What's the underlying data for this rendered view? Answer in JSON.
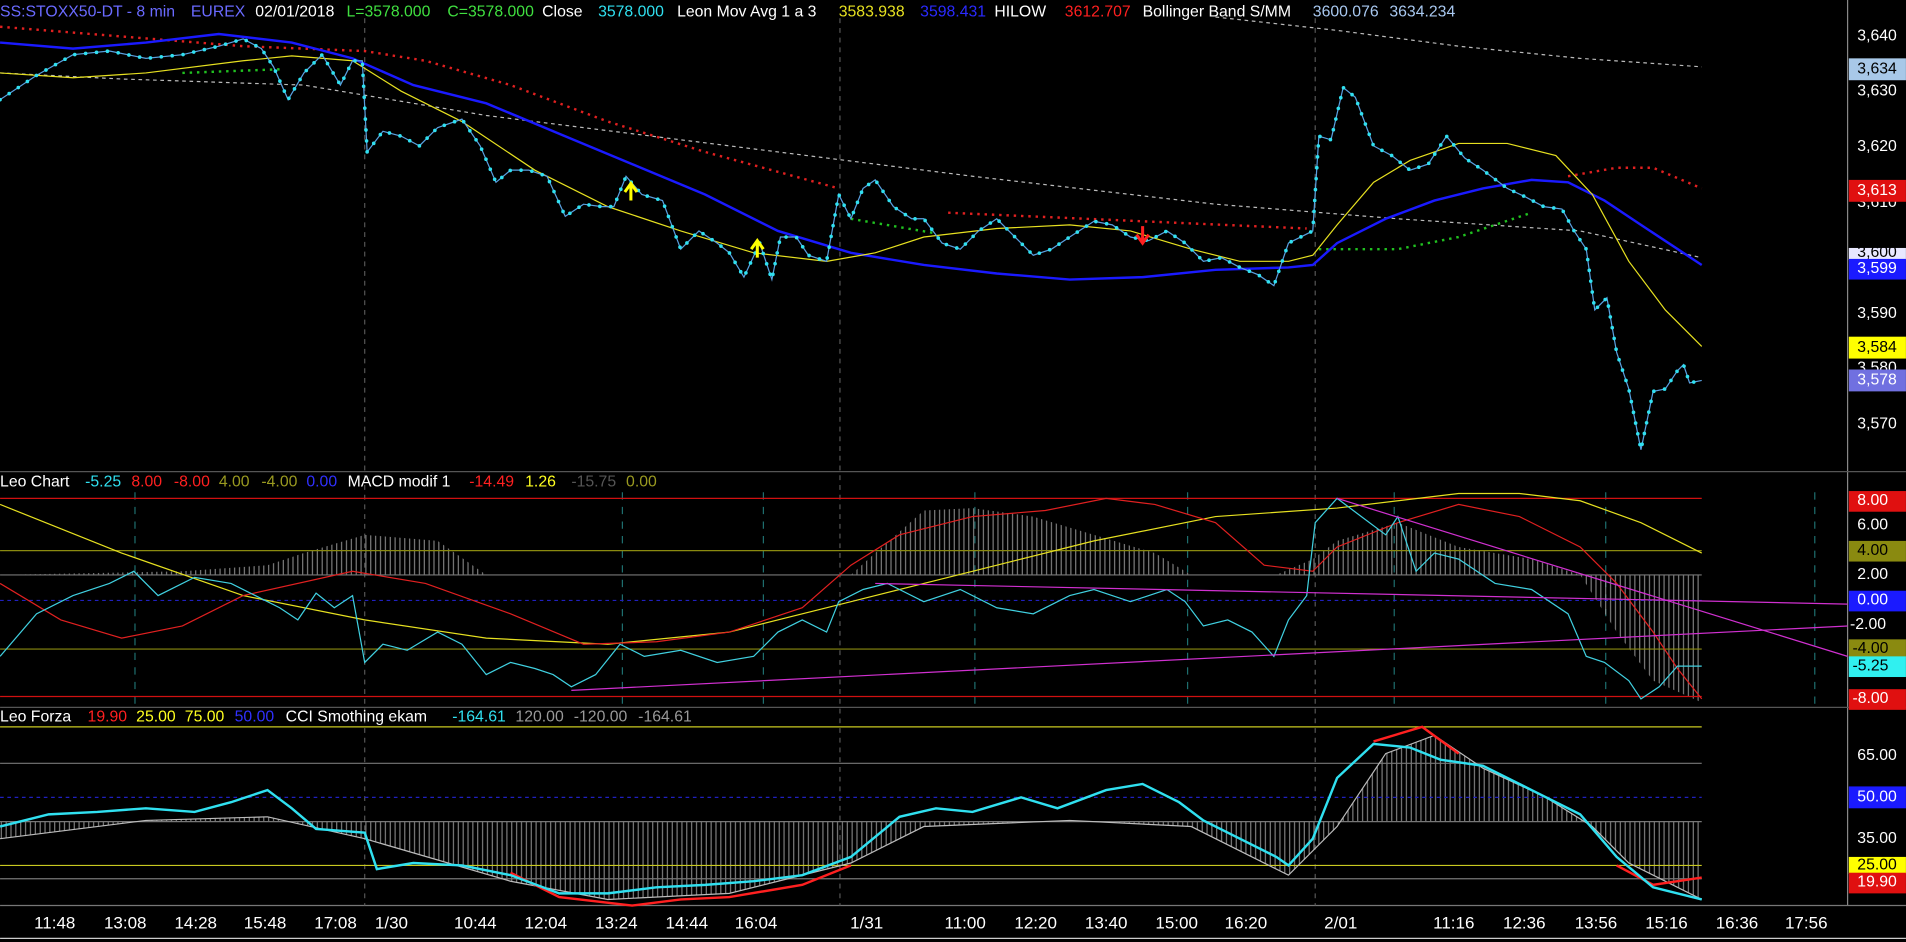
{
  "header": {
    "symbol": "SS:STOXX50-DT - 8 min",
    "exchange": "EUREX",
    "date": "02/01/2018",
    "low": "L=3578.000",
    "close_value": "C=3578.000",
    "close_label": "Close",
    "close": "3578.000",
    "ma_label": "Leon Mov Avg 1 a 3",
    "ma_1": "3583.938",
    "ma_2": "3598.431",
    "hilow_label": "HILOW",
    "hilow": "3612.707",
    "bb_label": "Bollinger Band S/MM",
    "bb_1": "3600.076",
    "bb_2": "3634.234"
  },
  "price_axis": {
    "labels": [
      "3,640",
      "3,630",
      "3,620",
      "3,610",
      "3,590",
      "3,580",
      "3,570"
    ],
    "markers": [
      "3,634",
      "3,613",
      "3,600",
      "3,599",
      "3,584",
      "3,578"
    ]
  },
  "macd_panel": {
    "legend": [
      "Leo Chart",
      "-5.25",
      "8.00",
      "-8.00",
      "4.00",
      "-4.00",
      "0.00",
      "MACD modif 1",
      "-14.49",
      "1.26",
      "-15.75",
      "0.00"
    ],
    "labels": [
      "6.00",
      "2.00",
      "-2.00"
    ],
    "markers": [
      "8.00",
      "4.00",
      "0.00",
      "-4.00",
      "-5.25",
      "-8.00"
    ]
  },
  "cci_panel": {
    "legend": [
      "Leo Forza",
      "19.90",
      "25.00",
      "75.00",
      "50.00",
      "CCI Smothing ekam",
      "-164.61",
      "120.00",
      "-120.00",
      "-164.61"
    ],
    "labels": [
      "65.00",
      "35.00"
    ],
    "markers": [
      "50.00",
      "25.00",
      "19.90"
    ]
  },
  "time_axis": [
    "11:48",
    "13:08",
    "14:28",
    "15:48",
    "17:08",
    "1/30",
    "10:44",
    "12:04",
    "13:24",
    "14:44",
    "16:04",
    "1/31",
    "11:00",
    "12:20",
    "13:40",
    "15:00",
    "16:20",
    "2/01",
    "11:16",
    "12:36",
    "13:56",
    "15:16",
    "16:36",
    "17:56"
  ]
}
